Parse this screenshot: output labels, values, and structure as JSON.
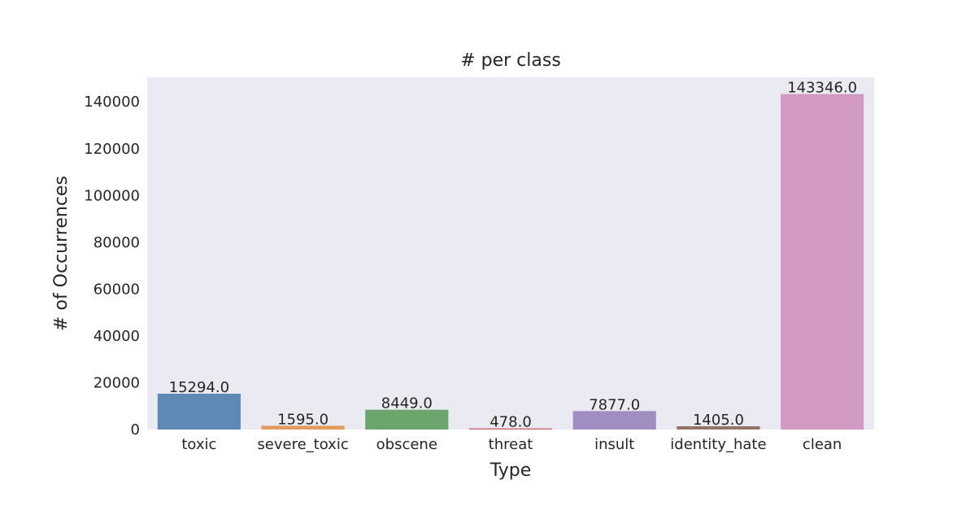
{
  "chart_data": {
    "type": "bar",
    "title": "# per class",
    "xlabel": "Type",
    "ylabel": "# of Occurrences",
    "categories": [
      "toxic",
      "severe_toxic",
      "obscene",
      "threat",
      "insult",
      "identity_hate",
      "clean"
    ],
    "values": [
      15294,
      1595,
      8449,
      478,
      7877,
      1405,
      143346
    ],
    "value_labels": [
      "15294.0",
      "1595.0",
      "8449.0",
      "478.0",
      "7877.0",
      "1405.0",
      "143346.0"
    ],
    "colors": [
      "#5f89b5",
      "#e39a5a",
      "#6aa56b",
      "#c8666a",
      "#a08dc2",
      "#947468",
      "#d29ac3"
    ],
    "yticks": [
      0,
      20000,
      40000,
      60000,
      80000,
      100000,
      120000,
      140000
    ],
    "ytick_labels": [
      "0",
      "20000",
      "40000",
      "60000",
      "80000",
      "100000",
      "120000",
      "140000"
    ],
    "ylim": [
      0,
      150513
    ],
    "grid": false,
    "plot_background": "#eaeaf2"
  }
}
